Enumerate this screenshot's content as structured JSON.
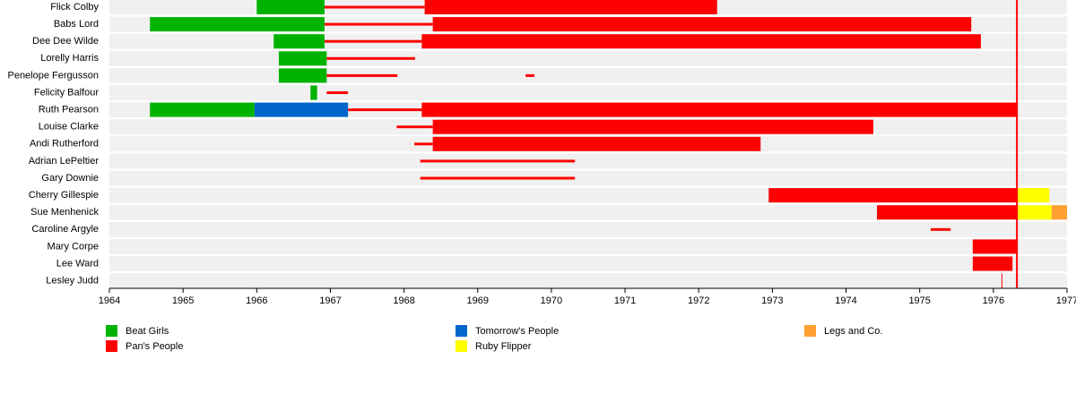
{
  "chart_data": {
    "type": "timeline",
    "xlim": [
      1964,
      1977
    ],
    "xticks": [
      1964,
      1965,
      1966,
      1967,
      1968,
      1969,
      1970,
      1971,
      1972,
      1973,
      1974,
      1975,
      1976,
      1977
    ],
    "series": [
      {
        "name": "Beat Girls",
        "color": "#00b300"
      },
      {
        "name": "Pan's People",
        "color": "#ff0000"
      },
      {
        "name": "Tomorrow's People",
        "color": "#0066cc"
      },
      {
        "name": "Ruby Flipper",
        "color": "#ffff00"
      },
      {
        "name": "Legs and Co.",
        "color": "#ffa030"
      }
    ],
    "marker_lines": [
      {
        "value": 1976.32,
        "series": 1
      }
    ],
    "rows": [
      {
        "name": "Flick Colby",
        "segments": [
          {
            "start": 1966.0,
            "end": 1966.92,
            "series": 0,
            "bar": "full"
          },
          {
            "start": 1966.92,
            "end": 1968.28,
            "series": 1,
            "bar": "line"
          },
          {
            "start": 1968.28,
            "end": 1972.25,
            "series": 1,
            "bar": "full"
          }
        ]
      },
      {
        "name": "Babs Lord",
        "segments": [
          {
            "start": 1964.55,
            "end": 1966.92,
            "series": 0,
            "bar": "full"
          },
          {
            "start": 1966.92,
            "end": 1968.39,
            "series": 1,
            "bar": "line"
          },
          {
            "start": 1968.39,
            "end": 1975.7,
            "series": 1,
            "bar": "full"
          }
        ]
      },
      {
        "name": "Dee Dee Wilde",
        "segments": [
          {
            "start": 1966.23,
            "end": 1966.92,
            "series": 0,
            "bar": "full"
          },
          {
            "start": 1966.92,
            "end": 1968.24,
            "series": 1,
            "bar": "line"
          },
          {
            "start": 1968.24,
            "end": 1975.83,
            "series": 1,
            "bar": "full"
          }
        ]
      },
      {
        "name": "Lorelly Harris",
        "segments": [
          {
            "start": 1966.3,
            "end": 1966.95,
            "series": 0,
            "bar": "full"
          },
          {
            "start": 1966.95,
            "end": 1968.15,
            "series": 1,
            "bar": "line"
          }
        ]
      },
      {
        "name": "Penelope Fergusson",
        "segments": [
          {
            "start": 1966.3,
            "end": 1966.95,
            "series": 0,
            "bar": "full"
          },
          {
            "start": 1966.95,
            "end": 1967.91,
            "series": 1,
            "bar": "line"
          },
          {
            "start": 1969.65,
            "end": 1969.77,
            "series": 1,
            "bar": "line"
          }
        ]
      },
      {
        "name": "Felicity Balfour",
        "segments": [
          {
            "start": 1966.73,
            "end": 1966.82,
            "series": 0,
            "bar": "full"
          },
          {
            "start": 1966.95,
            "end": 1967.24,
            "series": 1,
            "bar": "line"
          }
        ]
      },
      {
        "name": "Ruth Pearson",
        "segments": [
          {
            "start": 1964.55,
            "end": 1965.97,
            "series": 0,
            "bar": "full"
          },
          {
            "start": 1965.97,
            "end": 1967.24,
            "series": 2,
            "bar": "full"
          },
          {
            "start": 1967.24,
            "end": 1968.24,
            "series": 1,
            "bar": "line"
          },
          {
            "start": 1968.24,
            "end": 1976.32,
            "series": 1,
            "bar": "full"
          }
        ]
      },
      {
        "name": "Louise Clarke",
        "segments": [
          {
            "start": 1967.9,
            "end": 1968.39,
            "series": 1,
            "bar": "line"
          },
          {
            "start": 1968.39,
            "end": 1974.37,
            "series": 1,
            "bar": "full"
          }
        ]
      },
      {
        "name": "Andi Rutherford",
        "segments": [
          {
            "start": 1968.14,
            "end": 1968.39,
            "series": 1,
            "bar": "line"
          },
          {
            "start": 1968.39,
            "end": 1972.84,
            "series": 1,
            "bar": "full"
          }
        ]
      },
      {
        "name": "Adrian LePeltier",
        "segments": [
          {
            "start": 1968.22,
            "end": 1970.32,
            "series": 1,
            "bar": "line"
          }
        ]
      },
      {
        "name": "Gary Downie",
        "segments": [
          {
            "start": 1968.22,
            "end": 1970.32,
            "series": 1,
            "bar": "line"
          }
        ]
      },
      {
        "name": "Cherry Gillespie",
        "segments": [
          {
            "start": 1972.95,
            "end": 1976.32,
            "series": 1,
            "bar": "full"
          },
          {
            "start": 1976.32,
            "end": 1976.76,
            "series": 3,
            "bar": "full"
          }
        ]
      },
      {
        "name": "Sue Menhenick",
        "segments": [
          {
            "start": 1974.42,
            "end": 1976.32,
            "series": 1,
            "bar": "full"
          },
          {
            "start": 1976.32,
            "end": 1976.79,
            "series": 3,
            "bar": "full"
          },
          {
            "start": 1976.79,
            "end": 1977.0,
            "series": 4,
            "bar": "full"
          }
        ]
      },
      {
        "name": "Caroline Argyle",
        "segments": [
          {
            "start": 1975.15,
            "end": 1975.42,
            "series": 1,
            "bar": "line"
          }
        ]
      },
      {
        "name": "Mary Corpe",
        "segments": [
          {
            "start": 1975.72,
            "end": 1976.32,
            "series": 1,
            "bar": "full"
          }
        ]
      },
      {
        "name": "Lee Ward",
        "segments": [
          {
            "start": 1975.72,
            "end": 1976.26,
            "series": 1,
            "bar": "full"
          }
        ]
      },
      {
        "name": "Lesley Judd",
        "segments": [
          {
            "start": 1976.11,
            "end": 1976.12,
            "series": 1,
            "bar": "full"
          }
        ]
      }
    ]
  }
}
